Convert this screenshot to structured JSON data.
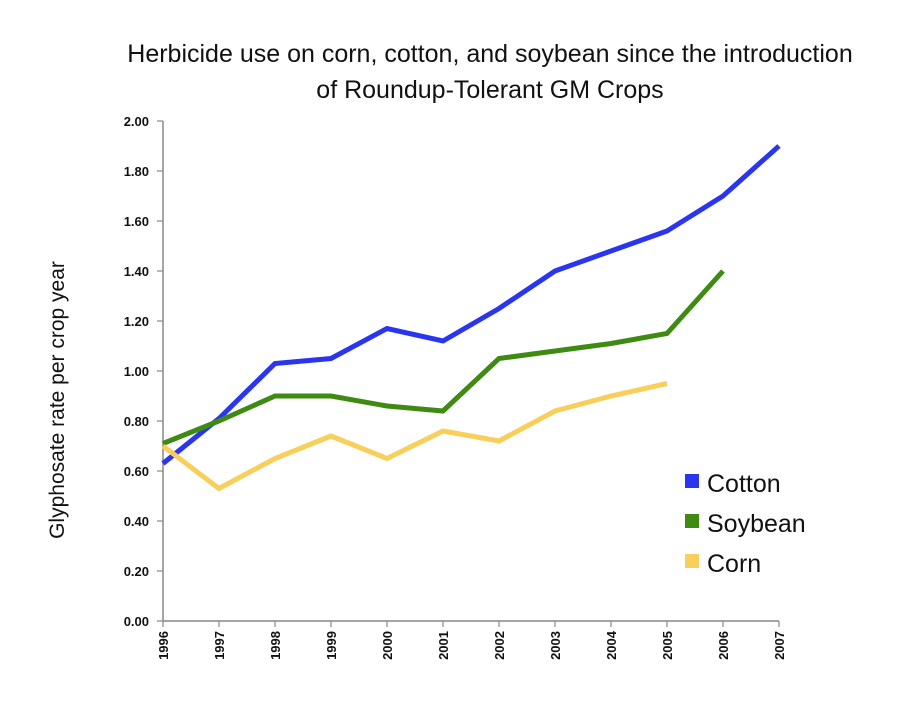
{
  "chart_data": {
    "type": "line",
    "title_line1": "Herbicide use on corn, cotton, and soybean since the introduction",
    "title_line2": "of Roundup-Tolerant GM Crops",
    "xlabel": "",
    "ylabel": "Glyphosate rate per crop year",
    "ylim": [
      0,
      2
    ],
    "yticks": [
      "0.00",
      "0.20",
      "0.40",
      "0.60",
      "0.80",
      "1.00",
      "1.20",
      "1.40",
      "1.60",
      "1.80",
      "2.00"
    ],
    "x": [
      "1996",
      "1997",
      "1998",
      "1999",
      "2000",
      "2001",
      "2002",
      "2003",
      "2004",
      "2005",
      "2006",
      "2007"
    ],
    "grid": false,
    "legend_position": "bottom-right",
    "series": [
      {
        "name": "Cotton",
        "color": "#2a35f0",
        "values": [
          0.63,
          0.81,
          1.03,
          1.05,
          1.17,
          1.12,
          1.25,
          1.4,
          1.48,
          1.56,
          1.7,
          1.9
        ]
      },
      {
        "name": "Soybean",
        "color": "#3e8a12",
        "values": [
          0.71,
          0.8,
          0.9,
          0.9,
          0.86,
          0.84,
          1.05,
          1.08,
          1.11,
          1.15,
          1.4,
          null
        ]
      },
      {
        "name": "Corn",
        "color": "#f8cf5a",
        "values": [
          0.7,
          0.53,
          0.65,
          0.74,
          0.65,
          0.76,
          0.72,
          0.84,
          0.9,
          0.95,
          null,
          null
        ]
      }
    ]
  }
}
